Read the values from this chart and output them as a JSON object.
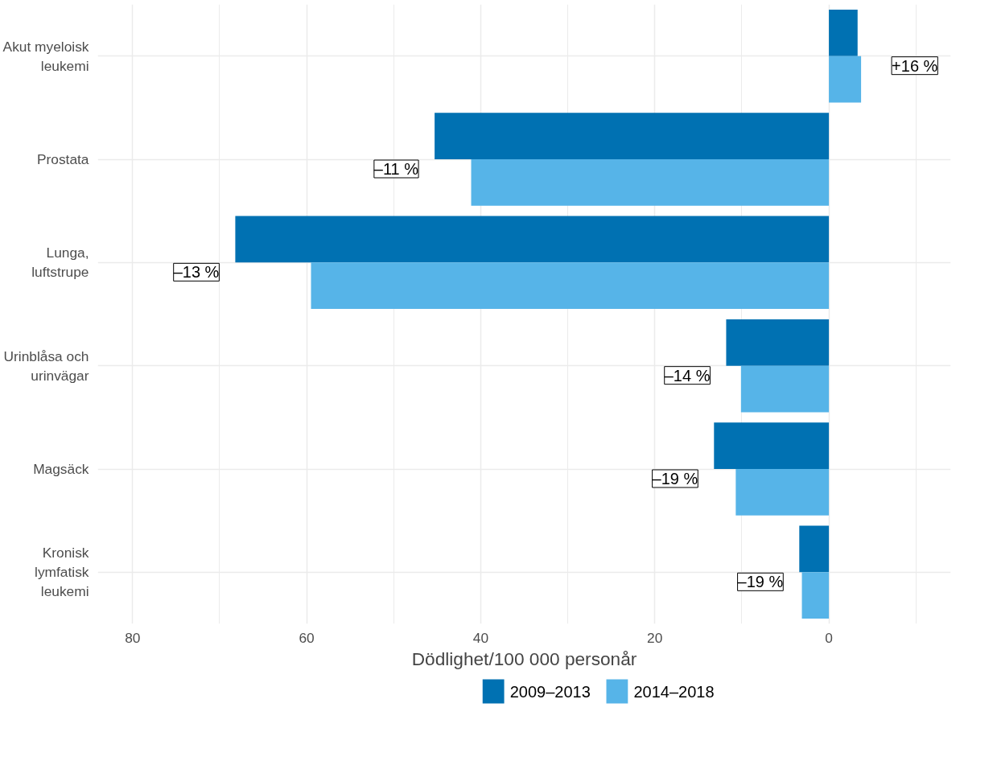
{
  "chart_data": {
    "type": "bar",
    "orientation": "horizontal",
    "xlabel": "Dödlighet/100 000 personår",
    "categories": [
      "Akut myeloisk\nleukemi",
      "Prostata",
      "Lunga,\nluftstrupe",
      "Urinblåsa och\nurinvägar",
      "Magsäck",
      "Kronisk\nlymfatisk\nleukemi"
    ],
    "series": [
      {
        "name": "2009–2013",
        "color": "#0071b2",
        "values": [
          -3.3,
          45.3,
          68.2,
          11.8,
          13.2,
          3.4
        ]
      },
      {
        "name": "2014–2018",
        "color": "#56b4e8",
        "values": [
          -3.7,
          41.1,
          59.5,
          10.1,
          10.7,
          3.1
        ]
      }
    ],
    "xlim": [
      84,
      -14
    ],
    "xticks": [
      80,
      60,
      40,
      20,
      0
    ],
    "annotations": [
      "+16 %",
      "–11 %",
      "–13 %",
      "–14 %",
      "–19 %",
      "–19 %"
    ],
    "grid": true,
    "legend": "bottom"
  }
}
